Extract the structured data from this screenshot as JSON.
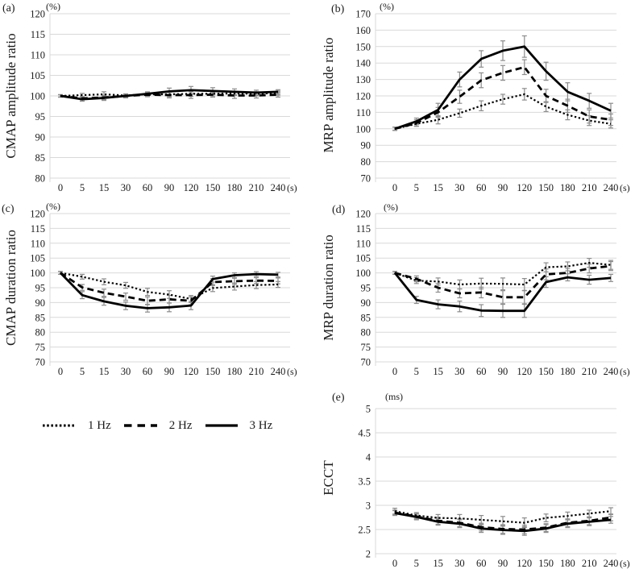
{
  "legend": {
    "items": [
      {
        "label": "1 Hz",
        "style": "dotted"
      },
      {
        "label": "2 Hz",
        "style": "dashed"
      },
      {
        "label": "3 Hz",
        "style": "solid"
      }
    ]
  },
  "colors": {
    "line": "#000000",
    "gridline": "#d9d9d9",
    "error_bar": "#8c8c8c",
    "text": "#1a1a1a"
  },
  "chart_data": [
    {
      "id": "a",
      "panel_label": "(a)",
      "type": "line",
      "ylabel": "CMAP amplitude ratio",
      "y_unit": "(%)",
      "x_unit": "(s)",
      "categories": [
        "0",
        "5",
        "15",
        "30",
        "60",
        "90",
        "120",
        "150",
        "180",
        "210",
        "240"
      ],
      "ylim": [
        80,
        120
      ],
      "ytick_step": 5,
      "grid": "horizontal",
      "series": [
        {
          "name": "1 Hz",
          "style": "dotted",
          "values": [
            100,
            100.2,
            100.4,
            100.1,
            100.4,
            100.4,
            100.5,
            100.5,
            100.6,
            100.5,
            100.7
          ],
          "errors": [
            0.3,
            0.4,
            0.6,
            0.4,
            0.5,
            0.6,
            0.6,
            0.5,
            0.5,
            0.5,
            0.5
          ]
        },
        {
          "name": "2 Hz",
          "style": "dashed",
          "values": [
            100,
            99.4,
            99.6,
            100,
            100.3,
            100.2,
            100.2,
            100.3,
            100.1,
            100.1,
            100.3
          ],
          "errors": [
            0.3,
            0.4,
            0.5,
            0.4,
            0.5,
            0.7,
            0.8,
            0.6,
            0.7,
            0.6,
            0.6
          ]
        },
        {
          "name": "3 Hz",
          "style": "solid",
          "values": [
            100,
            99.2,
            99.5,
            100,
            100.5,
            101.1,
            101.4,
            101.2,
            101,
            100.8,
            101
          ],
          "errors": [
            0.3,
            0.5,
            0.6,
            0.5,
            0.5,
            0.8,
            0.9,
            0.8,
            0.7,
            0.6,
            0.5
          ]
        }
      ]
    },
    {
      "id": "b",
      "panel_label": "(b)",
      "type": "line",
      "ylabel": "MRP amplitude ratio",
      "y_unit": "(%)",
      "x_unit": "(s)",
      "categories": [
        "0",
        "5",
        "15",
        "30",
        "60",
        "90",
        "120",
        "150",
        "180",
        "210",
        "240"
      ],
      "ylim": [
        70,
        170
      ],
      "ytick_step": 10,
      "grid": "horizontal",
      "series": [
        {
          "name": "1 Hz",
          "style": "dotted",
          "values": [
            100,
            103,
            105.5,
            109.5,
            114,
            118,
            121,
            113.5,
            108.5,
            105,
            103
          ],
          "errors": [
            1,
            1.5,
            2.5,
            2.5,
            3,
            3,
            3.5,
            3,
            3,
            3,
            2.5
          ]
        },
        {
          "name": "2 Hz",
          "style": "dashed",
          "values": [
            100,
            103.5,
            110,
            119.5,
            129.5,
            134,
            137.5,
            120,
            114,
            107.5,
            105.5
          ],
          "errors": [
            1,
            2,
            3,
            4,
            4.5,
            4.5,
            4.5,
            4,
            4,
            4,
            3.5
          ]
        },
        {
          "name": "3 Hz",
          "style": "solid",
          "values": [
            100,
            104.5,
            111.5,
            130,
            142.5,
            147.5,
            150,
            135,
            122.5,
            117,
            111
          ],
          "errors": [
            1,
            2,
            4,
            4.5,
            5,
            6,
            6.5,
            5.5,
            5.5,
            4.5,
            4.5
          ]
        }
      ]
    },
    {
      "id": "c",
      "panel_label": "(c)",
      "type": "line",
      "ylabel": "CMAP duration ratio",
      "y_unit": "(%)",
      "x_unit": "(s)",
      "categories": [
        "0",
        "5",
        "15",
        "30",
        "60",
        "90",
        "120",
        "150",
        "180",
        "210",
        "240"
      ],
      "ylim": [
        70,
        120
      ],
      "ytick_step": 5,
      "grid": "horizontal",
      "series": [
        {
          "name": "1 Hz",
          "style": "dotted",
          "values": [
            100,
            98.7,
            97,
            95.8,
            93.6,
            92.7,
            91.2,
            94.9,
            95.4,
            95.9,
            96.1
          ],
          "errors": [
            0.5,
            0.8,
            1,
            1,
            1.2,
            1.3,
            1.2,
            1.2,
            1.2,
            1.2,
            1
          ]
        },
        {
          "name": "2 Hz",
          "style": "dashed",
          "values": [
            100,
            95.1,
            93.3,
            92,
            90.6,
            91.1,
            90.6,
            96.9,
            97.2,
            97.4,
            97.3
          ],
          "errors": [
            0.5,
            1,
            1.2,
            1.2,
            1.3,
            1.3,
            1.3,
            1.2,
            1,
            1,
            1
          ]
        },
        {
          "name": "3 Hz",
          "style": "solid",
          "values": [
            100,
            92.5,
            90.4,
            88.9,
            88.1,
            88.4,
            89,
            97.9,
            99.2,
            99.6,
            99.4
          ],
          "errors": [
            0.5,
            1.2,
            1.3,
            1.3,
            1.3,
            1.5,
            1.4,
            1,
            0.8,
            0.8,
            0.8
          ]
        }
      ]
    },
    {
      "id": "d",
      "panel_label": "(d)",
      "type": "line",
      "ylabel": "MRP duration ratio",
      "y_unit": "(%)",
      "x_unit": "(s)",
      "categories": [
        "0",
        "5",
        "15",
        "30",
        "60",
        "90",
        "120",
        "150",
        "180",
        "210",
        "240"
      ],
      "ylim": [
        70,
        120
      ],
      "ytick_step": 5,
      "grid": "horizontal",
      "series": [
        {
          "name": "1 Hz",
          "style": "dotted",
          "values": [
            100,
            97.4,
            97.1,
            96.1,
            96.4,
            96.3,
            96.1,
            101.9,
            102.2,
            103.4,
            102.7
          ],
          "errors": [
            0.5,
            1,
            1.2,
            1.5,
            1.8,
            2,
            2,
            1.5,
            1.5,
            1.5,
            1.5
          ]
        },
        {
          "name": "2 Hz",
          "style": "dashed",
          "values": [
            100,
            98,
            95,
            93.1,
            93.4,
            91.8,
            91.8,
            99.5,
            100,
            101.5,
            102.3
          ],
          "errors": [
            0.5,
            1,
            1.5,
            1.5,
            1.8,
            2.2,
            2.2,
            1.8,
            1.5,
            1.5,
            1.5
          ]
        },
        {
          "name": "3 Hz",
          "style": "solid",
          "values": [
            100,
            90.9,
            89.4,
            88.7,
            87.3,
            87.2,
            87.2,
            96.9,
            98.5,
            97.7,
            98.3
          ],
          "errors": [
            0.5,
            1.2,
            1.5,
            1.8,
            2,
            2.2,
            2.2,
            1.8,
            1.2,
            1.5,
            1.2
          ]
        }
      ]
    },
    {
      "id": "e",
      "panel_label": "(e)",
      "type": "line",
      "ylabel": "ECCT",
      "y_unit": "(ms)",
      "x_unit": "(s)",
      "categories": [
        "0",
        "5",
        "15",
        "30",
        "60",
        "90",
        "120",
        "150",
        "180",
        "210",
        "240"
      ],
      "ylim": [
        2,
        5
      ],
      "ytick_step": 0.5,
      "grid": "horizontal",
      "series": [
        {
          "name": "1 Hz",
          "style": "dotted",
          "values": [
            2.88,
            2.79,
            2.74,
            2.73,
            2.7,
            2.67,
            2.64,
            2.74,
            2.78,
            2.83,
            2.88
          ],
          "errors": [
            0.06,
            0.06,
            0.07,
            0.08,
            0.09,
            0.1,
            0.1,
            0.08,
            0.08,
            0.07,
            0.07
          ]
        },
        {
          "name": "2 Hz",
          "style": "dashed",
          "values": [
            2.85,
            2.77,
            2.68,
            2.64,
            2.55,
            2.51,
            2.5,
            2.54,
            2.64,
            2.68,
            2.75
          ],
          "errors": [
            0.05,
            0.06,
            0.07,
            0.08,
            0.08,
            0.09,
            0.09,
            0.08,
            0.08,
            0.08,
            0.07
          ]
        },
        {
          "name": "3 Hz",
          "style": "solid",
          "values": [
            2.84,
            2.76,
            2.66,
            2.62,
            2.52,
            2.49,
            2.47,
            2.52,
            2.62,
            2.66,
            2.7
          ],
          "errors": [
            0.05,
            0.06,
            0.07,
            0.08,
            0.08,
            0.09,
            0.09,
            0.08,
            0.08,
            0.08,
            0.07
          ]
        }
      ]
    }
  ]
}
